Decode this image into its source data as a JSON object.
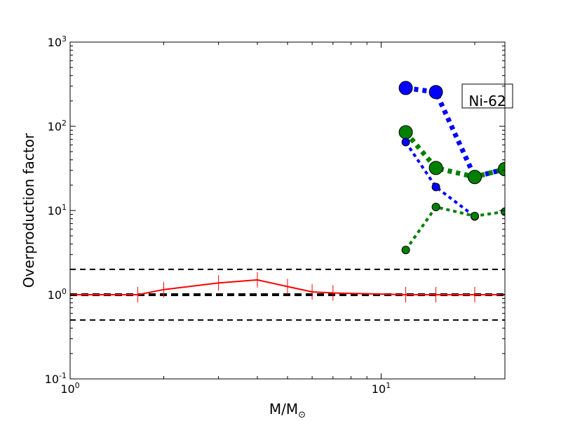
{
  "chart_data": {
    "type": "line",
    "xlabel": "M/M",
    "xlabel_sub": "⊙",
    "ylabel": "Overproduction factor",
    "xscale": "log",
    "yscale": "log",
    "xlim": [
      1,
      25
    ],
    "ylim": [
      0.1,
      1000
    ],
    "x_ticks": [
      {
        "value": 1,
        "base": "10",
        "exp": "0"
      },
      {
        "value": 10,
        "base": "10",
        "exp": "1"
      }
    ],
    "y_ticks": [
      {
        "value": 0.1,
        "base": "10",
        "exp": "-1"
      },
      {
        "value": 1,
        "base": "10",
        "exp": "0"
      },
      {
        "value": 10,
        "base": "10",
        "exp": "1"
      },
      {
        "value": 100,
        "base": "10",
        "exp": "2"
      },
      {
        "value": 1000,
        "base": "10",
        "exp": "3"
      }
    ],
    "reference_lines": [
      {
        "y": 2.0,
        "color": "#000000",
        "style": "dashed"
      },
      {
        "y": 1.0,
        "color": "#000000",
        "style": "dashed-bold"
      },
      {
        "y": 0.5,
        "color": "#000000",
        "style": "dashed"
      }
    ],
    "series": [
      {
        "color": "#ff0000",
        "style": "solid",
        "marker": "vline",
        "x": [
          1,
          1.65,
          2,
          3,
          4,
          5,
          6,
          7,
          12,
          15,
          20,
          25
        ],
        "values": [
          1.0,
          1.0,
          1.15,
          1.38,
          1.5,
          1.25,
          1.08,
          1.05,
          1.0,
          1.0,
          1.0,
          1.0
        ]
      },
      {
        "color": "#0000ff",
        "style": "dotted-thick",
        "marker": "circle-large",
        "x": [
          12,
          15,
          20,
          25
        ],
        "values": [
          285,
          255,
          25,
          31
        ]
      },
      {
        "color": "#008000",
        "style": "dotted-thick",
        "marker": "circle-large",
        "x": [
          12,
          15,
          20,
          25
        ],
        "values": [
          85,
          32,
          25,
          31
        ]
      },
      {
        "color": "#0000ff",
        "style": "dotted",
        "marker": "circle-small",
        "x": [
          12,
          15,
          20
        ],
        "values": [
          65,
          19,
          8.5
        ]
      },
      {
        "color": "#008000",
        "style": "dotted",
        "marker": "circle-small",
        "x": [
          12,
          15,
          20,
          25
        ],
        "values": [
          3.4,
          11,
          8.6,
          9.7
        ]
      }
    ],
    "annotation": {
      "text": "Ni-62",
      "x": 18.5,
      "y": 200
    },
    "grid": false,
    "legend": "none"
  }
}
